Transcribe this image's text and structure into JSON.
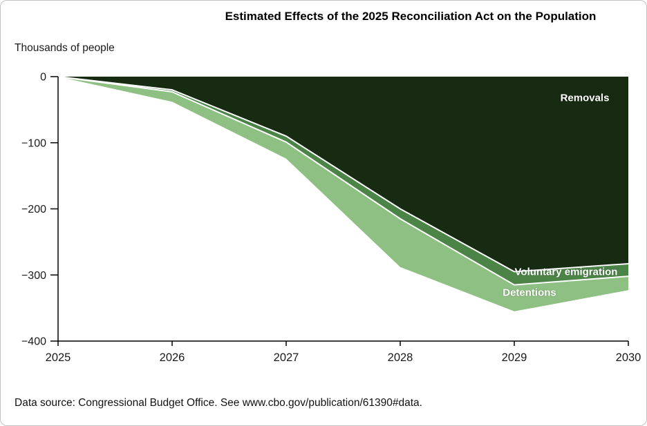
{
  "chart": {
    "title": "Estimated Effects of the 2025 Reconciliation Act on the Population",
    "ylabel": "Thousands of people",
    "source": "Data source: Congressional Budget Office. See www.cbo.gov/publication/61390#data."
  },
  "chart_data": {
    "type": "area",
    "stacked": true,
    "title": "Estimated Effects of the 2025 Reconciliation Act on the Population",
    "ylabel": "Thousands of people",
    "x": [
      2025,
      2026,
      2027,
      2028,
      2029,
      2030
    ],
    "ylim": [
      -400,
      0
    ],
    "yticks": [
      0,
      -100,
      -200,
      -300,
      -400
    ],
    "ytick_labels": [
      "0",
      "−100",
      "−200",
      "−300",
      "−400"
    ],
    "series": [
      {
        "name": "Removals",
        "color": "#172a12",
        "values": [
          0,
          -20,
          -90,
          -200,
          -295,
          -283
        ],
        "cumulative": [
          0,
          -20,
          -90,
          -200,
          -295,
          -283
        ]
      },
      {
        "name": "Voluntary emigration",
        "color": "#4c8347",
        "values": [
          0,
          -3,
          -9,
          -15,
          -20,
          -19
        ],
        "cumulative": [
          0,
          -23,
          -99,
          -215,
          -315,
          -302
        ]
      },
      {
        "name": "Detentions",
        "color": "#8fc083",
        "values": [
          0,
          -15,
          -25,
          -73,
          -40,
          -21
        ],
        "cumulative": [
          0,
          -38,
          -124,
          -288,
          -355,
          -323
        ]
      }
    ],
    "separator_color": "#ffffff",
    "axis_color": "#000000",
    "grid": false,
    "legend_position": "labels-inside",
    "source": "Data source: Congressional Budget Office. See www.cbo.gov/publication/61390#data."
  }
}
